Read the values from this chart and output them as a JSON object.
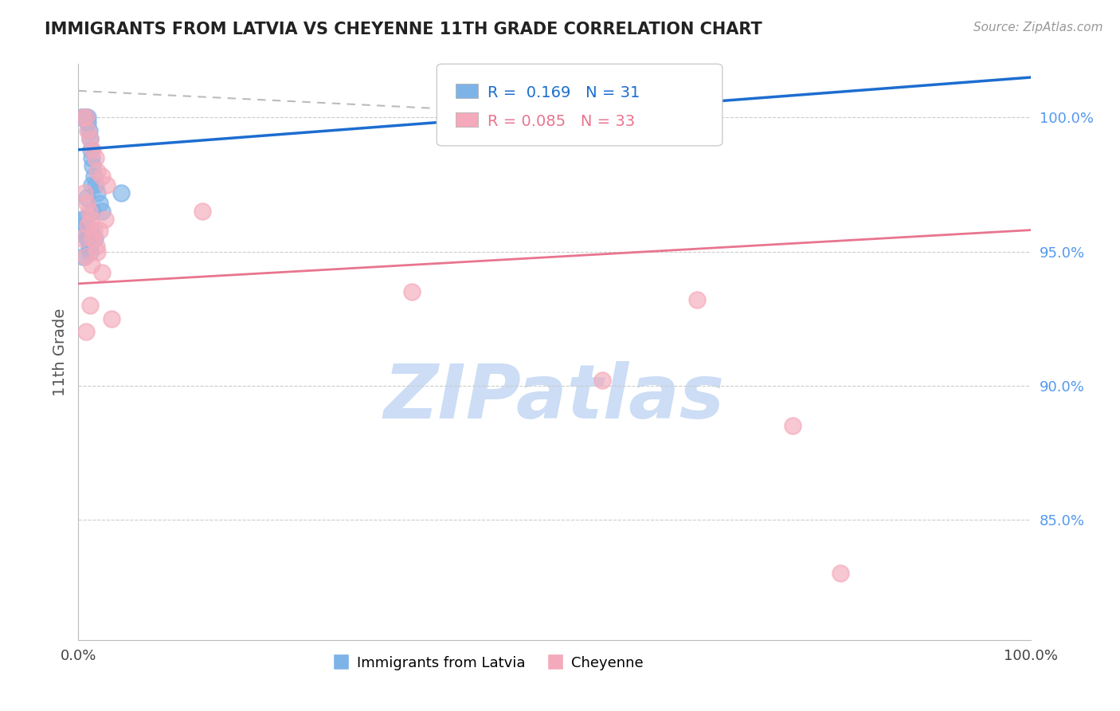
{
  "title": "IMMIGRANTS FROM LATVIA VS CHEYENNE 11TH GRADE CORRELATION CHART",
  "source_text": "Source: ZipAtlas.com",
  "ylabel": "11th Grade",
  "watermark": "ZIPatlas",
  "r_blue": 0.169,
  "n_blue": 31,
  "r_pink": 0.085,
  "n_pink": 33,
  "xlim": [
    0.0,
    100.0
  ],
  "ylim": [
    80.5,
    102.0
  ],
  "right_yticks": [
    85.0,
    90.0,
    95.0,
    100.0
  ],
  "right_yticklabels": [
    "85.0%",
    "90.0%",
    "95.0%",
    "100.0%"
  ],
  "xticks": [
    0.0,
    20.0,
    40.0,
    60.0,
    80.0,
    100.0
  ],
  "xticklabels": [
    "0.0%",
    "",
    "",
    "",
    "",
    "100.0%"
  ],
  "blue_scatter_x": [
    0.3,
    0.5,
    0.7,
    0.8,
    1.0,
    1.0,
    1.1,
    1.2,
    1.3,
    1.4,
    1.5,
    1.6,
    1.8,
    2.0,
    2.2,
    2.5,
    0.4,
    0.6,
    0.9,
    1.1,
    1.3,
    1.5,
    0.8,
    1.0,
    1.2,
    0.5,
    0.7,
    0.9,
    1.4,
    4.5,
    1.7
  ],
  "blue_scatter_y": [
    100.0,
    100.0,
    100.0,
    100.0,
    100.0,
    99.8,
    99.5,
    99.2,
    98.8,
    98.5,
    98.2,
    97.8,
    97.5,
    97.2,
    96.8,
    96.5,
    96.2,
    95.8,
    95.5,
    95.2,
    95.8,
    96.5,
    96.0,
    95.5,
    95.0,
    94.8,
    96.2,
    97.0,
    97.5,
    97.2,
    95.5
  ],
  "pink_scatter_x": [
    0.5,
    0.8,
    1.0,
    1.2,
    1.5,
    1.8,
    2.0,
    2.5,
    3.0,
    0.6,
    0.9,
    1.1,
    1.3,
    1.6,
    1.9,
    2.2,
    0.7,
    1.4,
    2.8,
    0.4,
    1.0,
    1.5,
    2.0,
    2.5,
    13.0,
    35.0,
    55.0,
    65.0,
    75.0,
    80.0,
    3.5,
    1.2,
    0.8
  ],
  "pink_scatter_y": [
    100.0,
    100.0,
    99.5,
    99.2,
    98.8,
    98.5,
    98.0,
    97.8,
    97.5,
    97.2,
    96.8,
    96.5,
    96.2,
    95.8,
    95.2,
    95.8,
    94.8,
    94.5,
    96.2,
    95.5,
    96.0,
    95.5,
    95.0,
    94.2,
    96.5,
    93.5,
    90.2,
    93.2,
    88.5,
    83.0,
    92.5,
    93.0,
    92.0
  ],
  "blue_color": "#7EB3E8",
  "pink_color": "#F4AABB",
  "blue_line_color": "#1C6DD0",
  "pink_line_color": "#E8758F",
  "dashed_line_color": "#BBBBBB",
  "grid_color": "#CCCCCC",
  "background_color": "#FFFFFF",
  "title_color": "#222222",
  "right_tick_color": "#5599EE",
  "watermark_color": "#CCDDF5"
}
